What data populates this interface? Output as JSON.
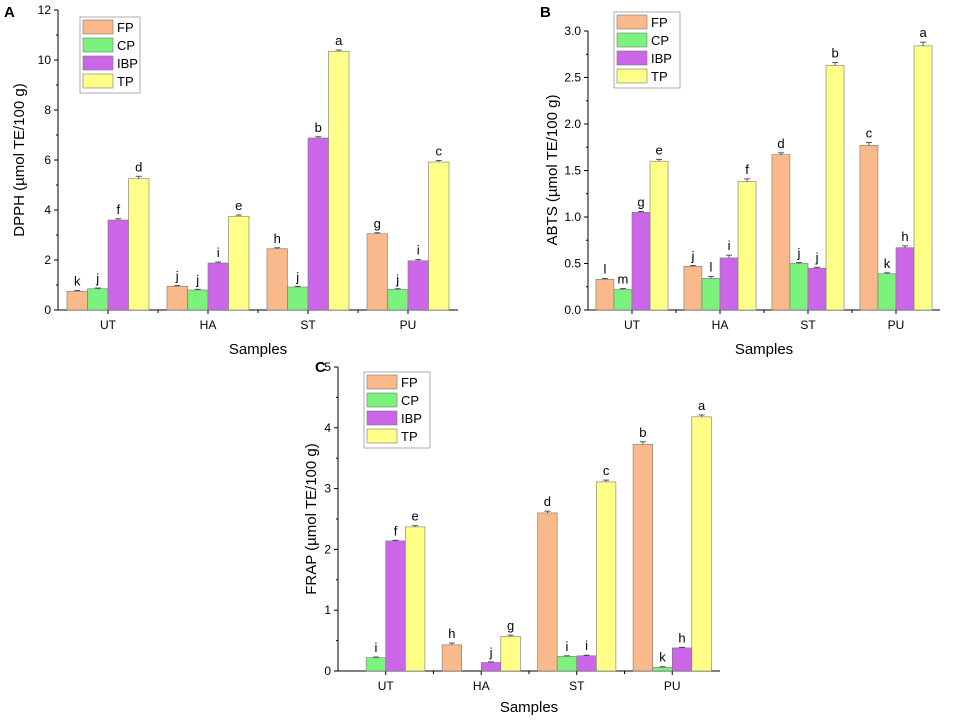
{
  "chart_data": [
    {
      "type": "bar",
      "panel": "A",
      "ylabel": "DPPH (µmol TE/100 g)",
      "xlabel": "Samples",
      "categories": [
        "UT",
        "HA",
        "ST",
        "PU"
      ],
      "ylim": [
        0,
        12
      ],
      "yticks": [
        0,
        2,
        4,
        6,
        8,
        10,
        12
      ],
      "legend_position": "top-left",
      "series": [
        {
          "name": "FP",
          "color": "#F9B98A",
          "values": [
            0.75,
            0.95,
            2.45,
            3.05
          ],
          "errors": [
            0.03,
            0.03,
            0.04,
            0.04
          ],
          "labels": [
            "k",
            "j",
            "h",
            "g"
          ]
        },
        {
          "name": "CP",
          "color": "#7BF27E",
          "values": [
            0.85,
            0.8,
            0.92,
            0.82
          ],
          "errors": [
            0.03,
            0.03,
            0.03,
            0.03
          ],
          "labels": [
            "j",
            "j",
            "j",
            "j"
          ]
        },
        {
          "name": "IBP",
          "color": "#CC66E8",
          "values": [
            3.6,
            1.88,
            6.88,
            1.97
          ],
          "errors": [
            0.05,
            0.04,
            0.05,
            0.05
          ],
          "labels": [
            "f",
            "i",
            "b",
            "i"
          ]
        },
        {
          "name": "TP",
          "color": "#FFFF88",
          "values": [
            5.25,
            3.75,
            10.35,
            5.92
          ],
          "errors": [
            0.1,
            0.05,
            0.05,
            0.06
          ],
          "labels": [
            "d",
            "e",
            "a",
            "c"
          ]
        }
      ]
    },
    {
      "type": "bar",
      "panel": "B",
      "ylabel": "ABTS (µmol TE/100 g)",
      "xlabel": "Samples",
      "categories": [
        "UT",
        "HA",
        "ST",
        "PU"
      ],
      "ylim": [
        0,
        3.0
      ],
      "yticks": [
        "0.0",
        "0.5",
        "1.0",
        "1.5",
        "2.0",
        "2.5",
        "3.0"
      ],
      "legend_position": "top-left",
      "series": [
        {
          "name": "FP",
          "color": "#F9B98A",
          "values": [
            0.33,
            0.47,
            1.67,
            1.77
          ],
          "errors": [
            0.01,
            0.01,
            0.02,
            0.03
          ],
          "labels": [
            "l",
            "j",
            "d",
            "c"
          ]
        },
        {
          "name": "CP",
          "color": "#7BF27E",
          "values": [
            0.22,
            0.34,
            0.5,
            0.39
          ],
          "errors": [
            0.01,
            0.02,
            0.01,
            0.01
          ],
          "labels": [
            "m",
            "l",
            "j",
            "k"
          ]
        },
        {
          "name": "IBP",
          "color": "#CC66E8",
          "values": [
            1.05,
            0.56,
            0.45,
            0.67
          ],
          "errors": [
            0.01,
            0.03,
            0.01,
            0.02
          ],
          "labels": [
            "g",
            "i",
            "j",
            "h"
          ]
        },
        {
          "name": "TP",
          "color": "#FFFF88",
          "values": [
            1.6,
            1.38,
            2.63,
            2.84
          ],
          "errors": [
            0.02,
            0.03,
            0.03,
            0.04
          ],
          "labels": [
            "e",
            "f",
            "b",
            "a"
          ]
        }
      ]
    },
    {
      "type": "bar",
      "panel": "C",
      "ylabel": "FRAP (µmol TE/100 g)",
      "xlabel": "Samples",
      "categories": [
        "UT",
        "HA",
        "ST",
        "PU"
      ],
      "ylim": [
        0,
        5
      ],
      "yticks": [
        0,
        1,
        2,
        3,
        4,
        5
      ],
      "legend_position": "top-left",
      "series": [
        {
          "name": "FP",
          "color": "#F9B98A",
          "values": [
            0.0,
            0.43,
            2.6,
            3.73
          ],
          "errors": [
            0.0,
            0.03,
            0.03,
            0.04
          ],
          "labels": [
            "",
            "h",
            "d",
            "b"
          ]
        },
        {
          "name": "CP",
          "color": "#7BF27E",
          "values": [
            0.22,
            0.0,
            0.24,
            0.06
          ],
          "errors": [
            0.01,
            0.0,
            0.01,
            0.01
          ],
          "labels": [
            "i",
            "",
            "i",
            "k"
          ]
        },
        {
          "name": "IBP",
          "color": "#CC66E8",
          "values": [
            2.14,
            0.14,
            0.25,
            0.38
          ],
          "errors": [
            0.01,
            0.01,
            0.01,
            0.01
          ],
          "labels": [
            "f",
            "j",
            "i",
            "h"
          ]
        },
        {
          "name": "TP",
          "color": "#FFFF88",
          "values": [
            2.37,
            0.57,
            3.11,
            4.18
          ],
          "errors": [
            0.02,
            0.02,
            0.03,
            0.03
          ],
          "labels": [
            "e",
            "g",
            "c",
            "a"
          ]
        }
      ]
    }
  ]
}
